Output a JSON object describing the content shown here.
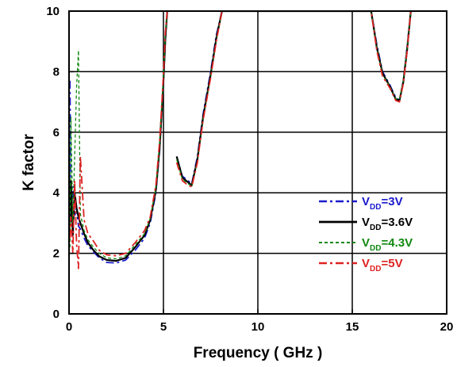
{
  "chart_data": {
    "type": "line",
    "xlabel": "Frequency ( GHz )",
    "ylabel": "K factor",
    "xlim": [
      0,
      20
    ],
    "ylim": [
      0,
      10
    ],
    "xticks": [
      "0",
      "5",
      "10",
      "15",
      "20"
    ],
    "yticks": [
      "0",
      "2",
      "4",
      "6",
      "8",
      "10"
    ],
    "grid": true,
    "legend_position": "right",
    "x": [
      0.05,
      0.1,
      0.2,
      0.3,
      0.4,
      0.5,
      0.6,
      0.8,
      1.0,
      1.3,
      1.6,
      2.0,
      2.5,
      3.0,
      3.5,
      4.0,
      4.3,
      4.6,
      4.8,
      5.0,
      5.1,
      5.2,
      5.4,
      5.7,
      6.0,
      6.3,
      6.5,
      6.8,
      7.1,
      7.5,
      7.8,
      8.1,
      16.0,
      16.3,
      16.6,
      17.0,
      17.3,
      17.5,
      17.7,
      17.9,
      18.1
    ],
    "series": [
      {
        "name_main": "V",
        "name_sub": "DD",
        "name_tail": "=3V",
        "color": "#1a1acc",
        "style": "dashdot",
        "values": [
          7.7,
          3.0,
          4.2,
          3.2,
          3.5,
          2.9,
          2.8,
          2.5,
          2.25,
          2.05,
          1.85,
          1.7,
          1.68,
          1.78,
          2.1,
          2.5,
          3.0,
          4.0,
          5.4,
          7.6,
          9.0,
          10.0,
          null,
          5.2,
          4.55,
          4.4,
          4.3,
          5.2,
          6.6,
          8.0,
          9.2,
          10.0,
          10.0,
          8.9,
          8.0,
          7.55,
          7.15,
          7.05,
          7.7,
          8.8,
          10.0
        ]
      },
      {
        "name_main": "V",
        "name_sub": "DD",
        "name_tail": "=3.6V",
        "color": "#000000",
        "style": "solid",
        "values": [
          3.0,
          4.4,
          2.6,
          4.0,
          3.5,
          3.2,
          3.0,
          2.65,
          2.35,
          2.1,
          1.9,
          1.78,
          1.75,
          1.85,
          2.2,
          2.6,
          3.1,
          4.1,
          5.5,
          7.7,
          9.1,
          10.0,
          null,
          5.2,
          4.5,
          4.35,
          4.25,
          5.1,
          6.5,
          7.9,
          9.1,
          10.0,
          10.0,
          8.8,
          7.95,
          7.5,
          7.1,
          7.05,
          7.65,
          8.7,
          10.0
        ]
      },
      {
        "name_main": "V",
        "name_sub": "DD",
        "name_tail": "=4.3V",
        "color": "#118811",
        "style": "dashed",
        "values": [
          2.2,
          6.5,
          3.0,
          5.2,
          7.5,
          8.7,
          3.3,
          2.75,
          2.45,
          2.2,
          2.0,
          1.85,
          1.82,
          1.92,
          2.28,
          2.65,
          3.15,
          4.15,
          5.6,
          7.8,
          9.2,
          10.0,
          null,
          5.1,
          4.45,
          4.3,
          4.22,
          5.05,
          6.45,
          7.85,
          9.05,
          10.0,
          10.0,
          8.8,
          7.9,
          7.5,
          7.1,
          7.1,
          7.7,
          8.75,
          10.0
        ]
      },
      {
        "name_main": "V",
        "name_sub": "DD",
        "name_tail": "=5V",
        "color": "#dd2222",
        "style": "dashdot",
        "values": [
          2.5,
          3.2,
          2.0,
          4.4,
          2.3,
          1.5,
          5.2,
          3.1,
          2.65,
          2.4,
          2.1,
          1.95,
          1.92,
          2.0,
          2.35,
          2.75,
          3.2,
          4.25,
          5.7,
          7.9,
          9.3,
          10.0,
          null,
          5.0,
          4.4,
          4.25,
          4.2,
          5.0,
          6.4,
          7.8,
          9.0,
          10.0,
          10.0,
          8.7,
          7.85,
          7.45,
          7.05,
          7.0,
          7.6,
          8.65,
          10.0
        ]
      }
    ]
  }
}
